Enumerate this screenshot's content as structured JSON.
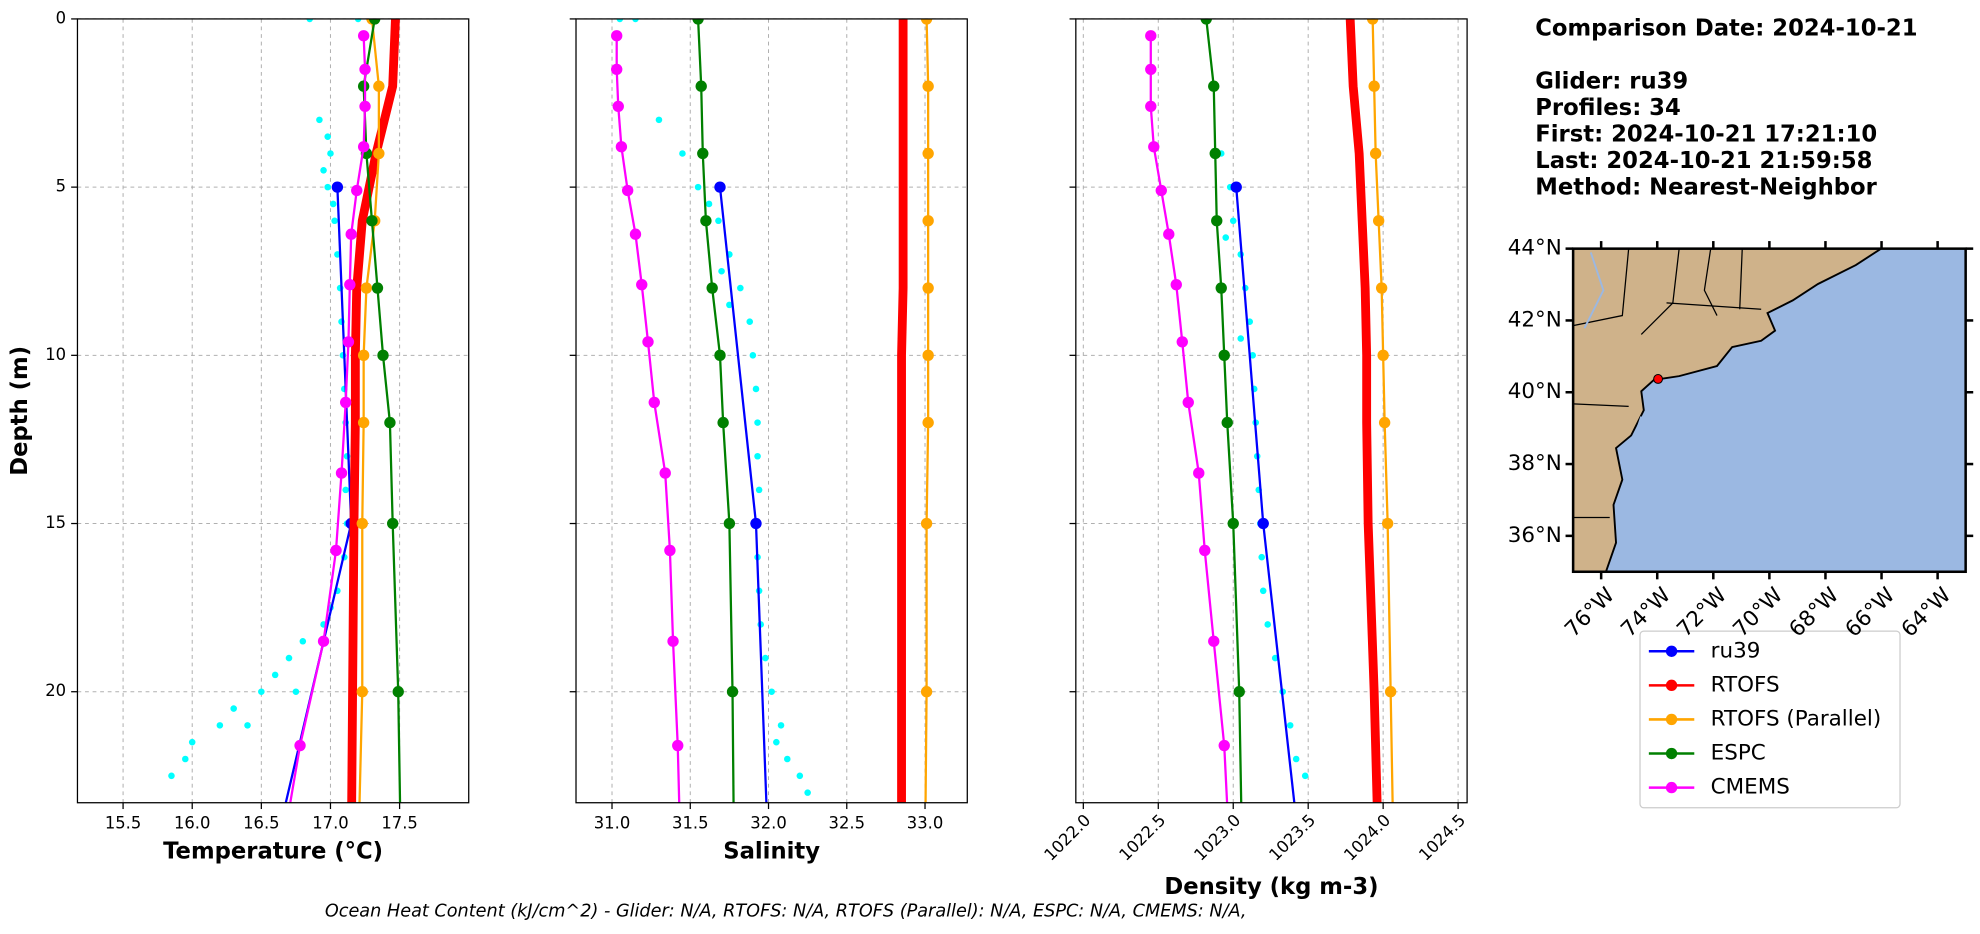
{
  "info": {
    "title": "Comparison Date: 2024-10-21",
    "lines": [
      "Glider: ru39",
      "Profiles: 34",
      "First: 2024-10-21 17:21:10",
      "Last: 2024-10-21 21:59:58",
      "Method: Nearest-Neighbor"
    ]
  },
  "footer": "Ocean Heat Content (kJ/cm^2) - Glider: N/A,  RTOFS: N/A,  RTOFS (Parallel): N/A,  ESPC: N/A,  CMEMS: N/A,",
  "chart_data": [
    {
      "type": "line",
      "xlabel": "Temperature (°C)",
      "ylabel": "Depth (m)",
      "grid": true,
      "show_ytick_labels": true,
      "xlim": [
        15.17,
        18.0
      ],
      "ylim": [
        23.3,
        0
      ],
      "xticks": [
        15.5,
        {
          "value": 16,
          "label": "16.0"
        },
        16.5,
        {
          "value": 17,
          "label": "17.0"
        },
        17.5
      ],
      "yticks": [
        0,
        5,
        10,
        15,
        20
      ],
      "scatter": {
        "color": "#00ffff",
        "depth": [
          0,
          0,
          3,
          3.5,
          4,
          4.5,
          5,
          5.5,
          6,
          7,
          8,
          9,
          10,
          11,
          12,
          13,
          14,
          15,
          16,
          17,
          17.5,
          18,
          18.5,
          19,
          19.5,
          20,
          20.5,
          21,
          21.5,
          22,
          22.5,
          21,
          20
        ],
        "values": [
          16.85,
          17.2,
          16.92,
          16.98,
          17.0,
          16.95,
          16.98,
          17.02,
          17.03,
          17.05,
          17.07,
          17.08,
          17.09,
          17.1,
          17.11,
          17.12,
          17.11,
          17.12,
          17.1,
          17.05,
          17.0,
          16.95,
          16.8,
          16.7,
          16.6,
          16.5,
          16.3,
          16.2,
          16.0,
          15.95,
          15.85,
          16.4,
          16.75
        ]
      },
      "series": [
        {
          "name": "ru39",
          "color": "#0000ff",
          "depth": [
            5,
            15,
            25
          ],
          "values": [
            17.05,
            17.15,
            16.58
          ]
        },
        {
          "name": "RTOFS",
          "color": "#ff0000",
          "depth": [
            0,
            2,
            4,
            6,
            8,
            10,
            12,
            15,
            20,
            25
          ],
          "values": [
            17.47,
            17.45,
            17.33,
            17.23,
            17.19,
            17.18,
            17.18,
            17.17,
            17.16,
            17.15
          ]
        },
        {
          "name": "RTOFS (Parallel)",
          "color": "#ffa500",
          "depth": [
            0,
            2,
            4,
            6,
            8,
            10,
            12,
            15,
            20,
            25
          ],
          "values": [
            17.3,
            17.35,
            17.35,
            17.32,
            17.26,
            17.24,
            17.24,
            17.23,
            17.23,
            17.2
          ]
        },
        {
          "name": "ESPC",
          "color": "#008000",
          "depth": [
            0,
            2,
            4,
            6,
            8,
            10,
            12,
            15,
            20,
            25
          ],
          "values": [
            17.32,
            17.24,
            17.26,
            17.3,
            17.34,
            17.38,
            17.43,
            17.45,
            17.49,
            17.51
          ]
        },
        {
          "name": "CMEMS",
          "color": "#ff00ff",
          "depth": [
            0.5,
            1.5,
            2.6,
            3.8,
            5.1,
            6.4,
            7.9,
            9.6,
            11.4,
            13.5,
            15.8,
            18.5,
            21.6,
            25.2
          ],
          "values": [
            17.24,
            17.25,
            17.25,
            17.24,
            17.19,
            17.15,
            17.14,
            17.13,
            17.11,
            17.08,
            17.04,
            16.95,
            16.78,
            16.63
          ]
        }
      ]
    },
    {
      "type": "line",
      "xlabel": "Salinity",
      "grid": true,
      "show_ytick_labels": false,
      "xlim": [
        30.77,
        33.27
      ],
      "ylim": [
        23.3,
        0
      ],
      "xticks": [
        {
          "value": 31,
          "label": "31.0"
        },
        31.5,
        {
          "value": 32,
          "label": "32.0"
        },
        32.5,
        {
          "value": 33,
          "label": "33.0"
        }
      ],
      "yticks": [
        0,
        5,
        10,
        15,
        20
      ],
      "scatter": {
        "color": "#00ffff",
        "depth": [
          0,
          0,
          3,
          4,
          5,
          5.5,
          6,
          7,
          7.5,
          8,
          8.5,
          9,
          10,
          11,
          12,
          13,
          14,
          15,
          16,
          17,
          18,
          19,
          20,
          21,
          21.5,
          22,
          22.5,
          23
        ],
        "values": [
          31.05,
          31.15,
          31.3,
          31.45,
          31.55,
          31.62,
          31.68,
          31.75,
          31.7,
          31.82,
          31.75,
          31.88,
          31.9,
          31.92,
          31.93,
          31.93,
          31.94,
          31.93,
          31.93,
          31.94,
          31.95,
          31.98,
          32.02,
          32.08,
          32.05,
          32.12,
          32.2,
          32.25
        ]
      },
      "series": [
        {
          "name": "ru39",
          "color": "#0000ff",
          "depth": [
            5,
            15,
            25
          ],
          "values": [
            31.69,
            31.92,
            32.0
          ]
        },
        {
          "name": "RTOFS",
          "color": "#ff0000",
          "depth": [
            0,
            2,
            4,
            6,
            8,
            10,
            12,
            15,
            20,
            25
          ],
          "values": [
            32.86,
            32.86,
            32.86,
            32.86,
            32.86,
            32.85,
            32.85,
            32.85,
            32.85,
            32.85
          ]
        },
        {
          "name": "RTOFS (Parallel)",
          "color": "#ffa500",
          "depth": [
            0,
            2,
            4,
            6,
            8,
            10,
            12,
            15,
            20,
            25
          ],
          "values": [
            33.01,
            33.02,
            33.02,
            33.02,
            33.02,
            33.02,
            33.02,
            33.01,
            33.01,
            33.0
          ]
        },
        {
          "name": "ESPC",
          "color": "#008000",
          "depth": [
            0,
            2,
            4,
            6,
            8,
            10,
            12,
            15,
            20,
            25
          ],
          "values": [
            31.55,
            31.57,
            31.58,
            31.6,
            31.64,
            31.69,
            31.71,
            31.75,
            31.77,
            31.78
          ]
        },
        {
          "name": "CMEMS",
          "color": "#ff00ff",
          "depth": [
            0.5,
            1.5,
            2.6,
            3.8,
            5.1,
            6.4,
            7.9,
            9.6,
            11.4,
            13.5,
            15.8,
            18.5,
            21.6,
            25.2
          ],
          "values": [
            31.03,
            31.03,
            31.04,
            31.06,
            31.1,
            31.15,
            31.19,
            31.23,
            31.27,
            31.34,
            31.37,
            31.39,
            31.42,
            31.44
          ]
        }
      ]
    },
    {
      "type": "line",
      "xlabel": "Density (kg m-3)",
      "grid": true,
      "show_ytick_labels": false,
      "xtick_rotation": 45,
      "xlim": [
        1021.95,
        1024.56
      ],
      "ylim": [
        23.3,
        0
      ],
      "xticks": [
        {
          "value": 1022,
          "label": "1022.0"
        },
        1022.5,
        {
          "value": 1023,
          "label": "1023.0"
        },
        1023.5,
        {
          "value": 1024,
          "label": "1024.0"
        },
        1024.5
      ],
      "yticks": [
        0,
        5,
        10,
        15,
        20
      ],
      "scatter": {
        "color": "#00ffff",
        "depth": [
          4,
          5,
          6,
          6.5,
          7,
          8,
          9,
          9.5,
          10,
          11,
          12,
          13,
          14,
          15,
          16,
          17,
          18,
          19,
          20,
          21,
          22,
          22.5
        ],
        "values": [
          1022.92,
          1022.98,
          1023.0,
          1022.95,
          1023.05,
          1023.08,
          1023.11,
          1023.05,
          1023.13,
          1023.14,
          1023.15,
          1023.16,
          1023.17,
          1023.18,
          1023.19,
          1023.2,
          1023.23,
          1023.28,
          1023.33,
          1023.38,
          1023.42,
          1023.48
        ]
      },
      "series": [
        {
          "name": "ru39",
          "color": "#0000ff",
          "depth": [
            5,
            15,
            25
          ],
          "values": [
            1023.02,
            1023.2,
            1023.45
          ]
        },
        {
          "name": "RTOFS",
          "color": "#ff0000",
          "depth": [
            0,
            2,
            4,
            6,
            8,
            10,
            12,
            15,
            20,
            25
          ],
          "values": [
            1023.78,
            1023.8,
            1023.84,
            1023.86,
            1023.88,
            1023.89,
            1023.89,
            1023.9,
            1023.94,
            1023.97
          ]
        },
        {
          "name": "RTOFS (Parallel)",
          "color": "#ffa500",
          "depth": [
            0,
            2,
            4,
            6,
            8,
            10,
            12,
            15,
            20,
            25
          ],
          "values": [
            1023.93,
            1023.94,
            1023.95,
            1023.97,
            1023.99,
            1024.0,
            1024.01,
            1024.03,
            1024.05,
            1024.07
          ]
        },
        {
          "name": "ESPC",
          "color": "#008000",
          "depth": [
            0,
            2,
            4,
            6,
            8,
            10,
            12,
            15,
            20,
            25
          ],
          "values": [
            1022.82,
            1022.87,
            1022.88,
            1022.89,
            1022.92,
            1022.94,
            1022.96,
            1023.0,
            1023.04,
            1023.06
          ]
        },
        {
          "name": "CMEMS",
          "color": "#ff00ff",
          "depth": [
            0.5,
            1.5,
            2.6,
            3.8,
            5.1,
            6.4,
            7.9,
            9.6,
            11.4,
            13.5,
            15.8,
            18.5,
            21.6,
            25.2
          ],
          "values": [
            1022.45,
            1022.45,
            1022.45,
            1022.47,
            1022.52,
            1022.57,
            1022.62,
            1022.66,
            1022.7,
            1022.77,
            1022.81,
            1022.87,
            1022.94,
            1022.98
          ]
        }
      ]
    },
    {
      "type": "map",
      "xlim": [
        -77,
        -63
      ],
      "ylim": [
        35,
        44
      ],
      "xticks": [
        {
          "value": -76,
          "label": "76°W"
        },
        {
          "value": -74,
          "label": "74°W"
        },
        {
          "value": -72,
          "label": "72°W"
        },
        {
          "value": -70,
          "label": "70°W"
        },
        {
          "value": -68,
          "label": "68°W"
        },
        {
          "value": -66,
          "label": "66°W"
        },
        {
          "value": -64,
          "label": "64°W"
        }
      ],
      "yticks": [
        {
          "value": 36,
          "label": "36°N"
        },
        {
          "value": 38,
          "label": "38°N"
        },
        {
          "value": 40,
          "label": "40°N"
        },
        {
          "value": 42,
          "label": "42°N"
        },
        {
          "value": 44,
          "label": "44°N"
        }
      ],
      "point": {
        "lon": -73.97,
        "lat": 40.37,
        "color": "#ff0000"
      }
    }
  ]
}
